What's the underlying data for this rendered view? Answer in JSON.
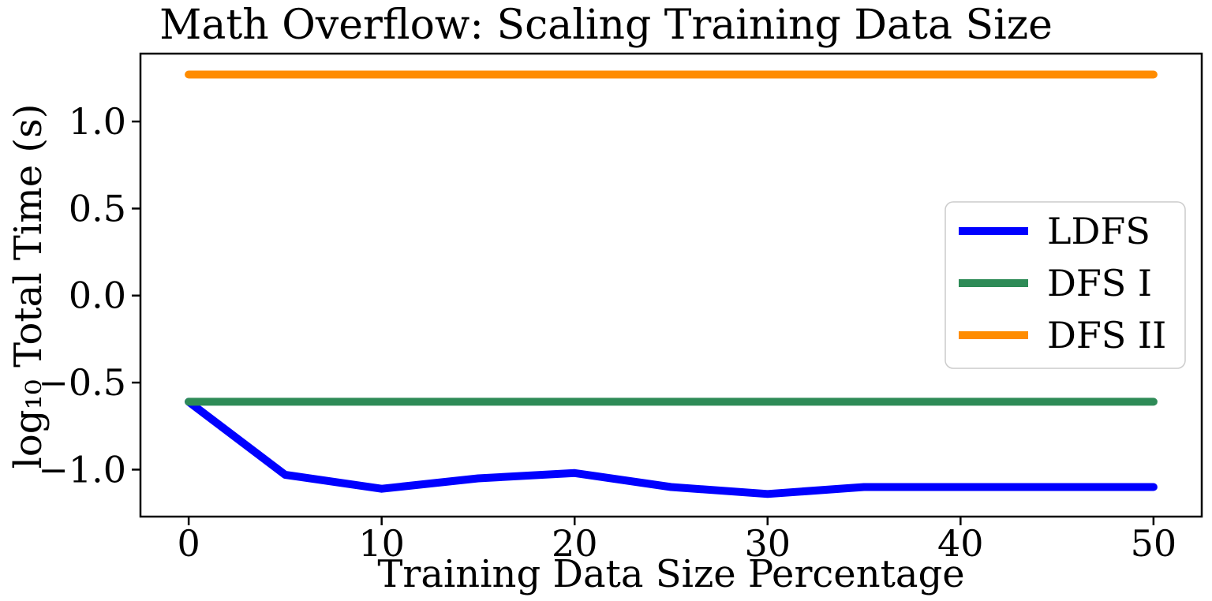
{
  "title": "Math Overflow: Scaling Training Data Size",
  "background_color": "#ffffff",
  "chart_data": {
    "type": "line",
    "title": "Math Overflow: Scaling Training Data Size",
    "xlabel": "Training Data Size Percentage",
    "ylabel": "log₁₀ Total Time (s)",
    "xlim": [
      -2.5,
      52.5
    ],
    "ylim": [
      -1.27,
      1.39
    ],
    "grid": false,
    "x": [
      0,
      5,
      10,
      15,
      20,
      25,
      30,
      35,
      40,
      45,
      50
    ],
    "xticks": {
      "values": [
        0,
        10,
        20,
        30,
        40,
        50
      ],
      "labels": [
        "0",
        "10",
        "20",
        "30",
        "40",
        "50"
      ]
    },
    "yticks": {
      "values": [
        1.0,
        0.5,
        0.0,
        -0.5,
        -1.0
      ],
      "labels": [
        "1.0",
        "0.5",
        "0.0",
        "−0.5",
        "−1.0"
      ]
    },
    "series": [
      {
        "name": "LDFS",
        "color": "#0000ff",
        "values": [
          -0.61,
          -1.03,
          -1.11,
          -1.05,
          -1.02,
          -1.1,
          -1.14,
          -1.1,
          -1.1,
          -1.1,
          -1.1
        ]
      },
      {
        "name": "DFS I",
        "color": "#2e8b57",
        "values": [
          -0.61,
          -0.61,
          -0.61,
          -0.61,
          -0.61,
          -0.61,
          -0.61,
          -0.61,
          -0.61,
          -0.61,
          -0.61
        ]
      },
      {
        "name": "DFS II",
        "color": "#ff8c00",
        "values": [
          1.27,
          1.27,
          1.27,
          1.27,
          1.27,
          1.27,
          1.27,
          1.27,
          1.27,
          1.27,
          1.27
        ]
      }
    ],
    "legend": {
      "position": "center right",
      "labels": [
        "LDFS",
        "DFS I",
        "DFS II"
      ]
    }
  }
}
